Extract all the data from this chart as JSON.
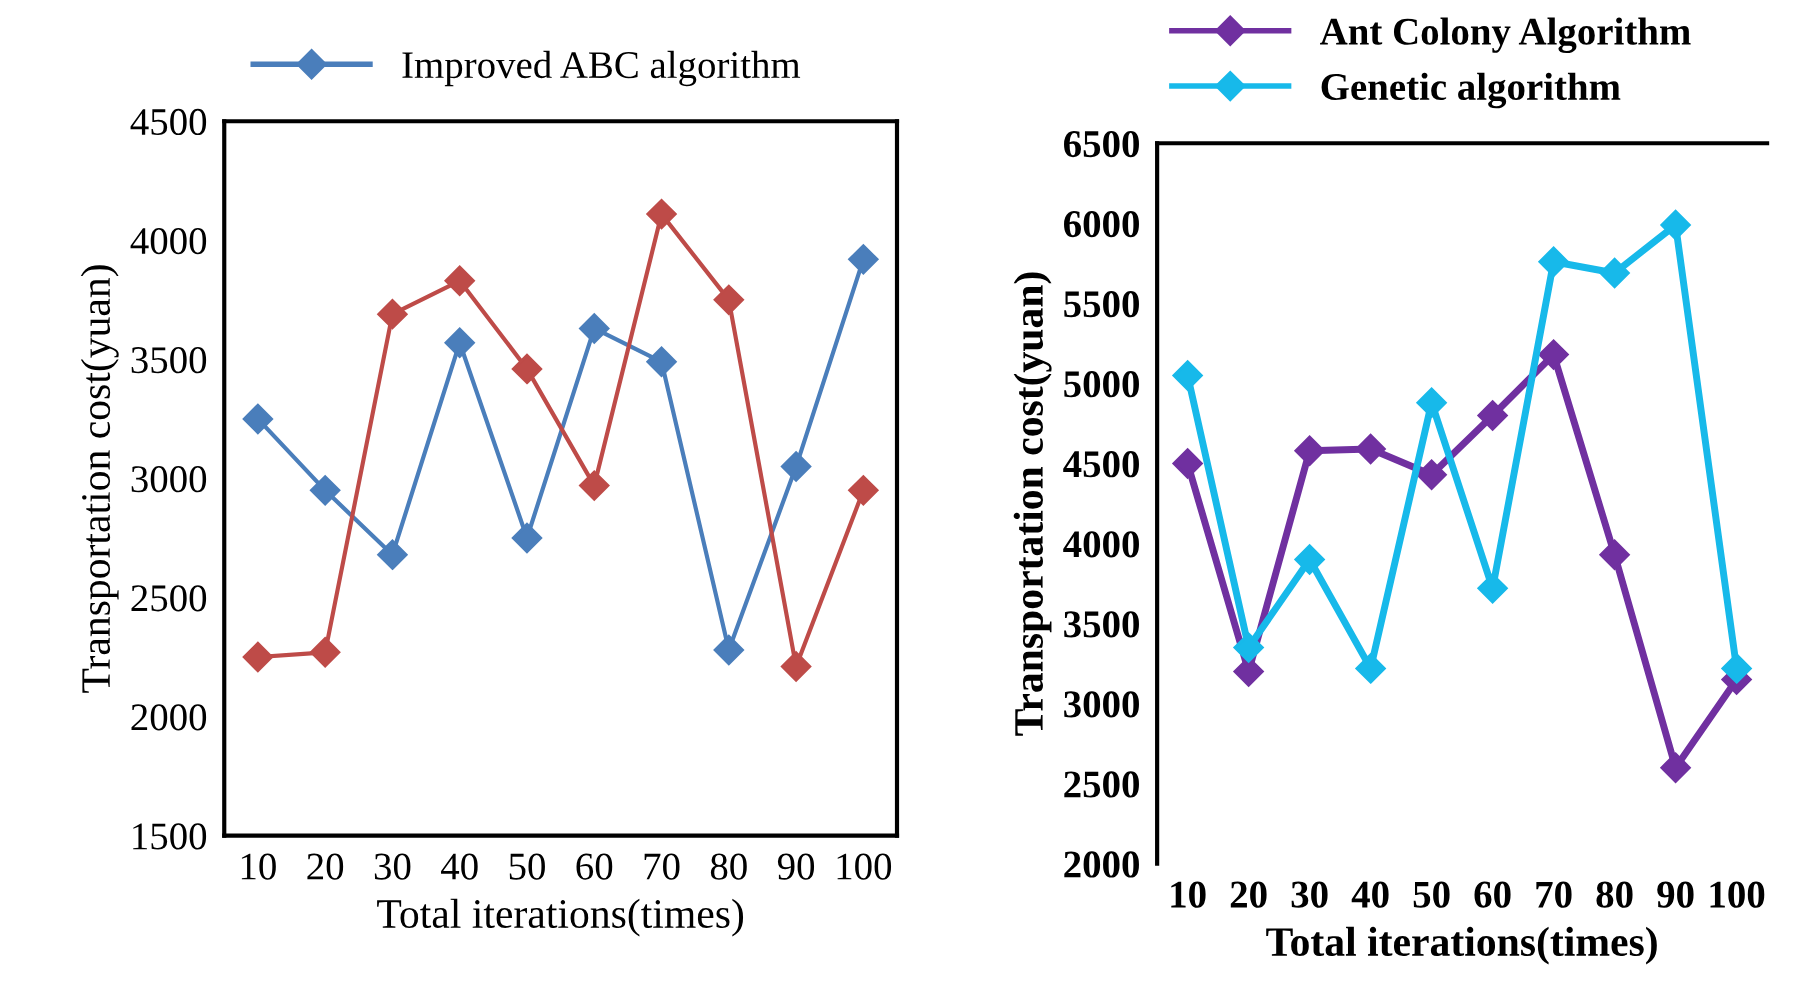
{
  "chart_data": [
    {
      "type": "line",
      "xlabel": "Total iterations(times)",
      "ylabel": "Transportation cost(yuan)",
      "categories": [
        "10",
        "20",
        "30",
        "40",
        "50",
        "60",
        "70",
        "80",
        "90",
        "100"
      ],
      "ylim": [
        1500,
        4500
      ],
      "yticks": [
        1500,
        2000,
        2500,
        3000,
        3500,
        4000,
        4500
      ],
      "marker": "diamond",
      "legend": "top",
      "grid": false,
      "series": [
        {
          "name": "Improved ABC algorithm",
          "color": "#4a7ebb",
          "values": [
            3250,
            2950,
            2680,
            3570,
            2750,
            3630,
            3490,
            2280,
            3050,
            3920
          ]
        },
        {
          "color": "#be4b48",
          "values": [
            2250,
            2270,
            3690,
            3830,
            3460,
            2970,
            4110,
            3750,
            2210,
            2950
          ]
        }
      ]
    },
    {
      "type": "line",
      "xlabel": "Total iterations(times)",
      "ylabel": "Transportation cost(yuan)",
      "categories": [
        "10",
        "20",
        "30",
        "40",
        "50",
        "60",
        "70",
        "80",
        "90",
        "100"
      ],
      "ylim": [
        2000,
        6500
      ],
      "yticks": [
        2000,
        2500,
        3000,
        3500,
        4000,
        4500,
        5000,
        5500,
        6000,
        6500
      ],
      "marker": "diamond",
      "legend": "top",
      "grid": false,
      "series": [
        {
          "name": "Ant Colony Algorithm",
          "color": "#7030a0",
          "values": [
            4500,
            3200,
            4580,
            4590,
            4430,
            4800,
            5180,
            3930,
            2600,
            3150
          ]
        },
        {
          "name": "Genetic algorithm",
          "color": "#17b9ea",
          "values": [
            5050,
            3350,
            3900,
            3220,
            4880,
            3720,
            5760,
            5690,
            5990,
            3220
          ]
        }
      ]
    }
  ]
}
